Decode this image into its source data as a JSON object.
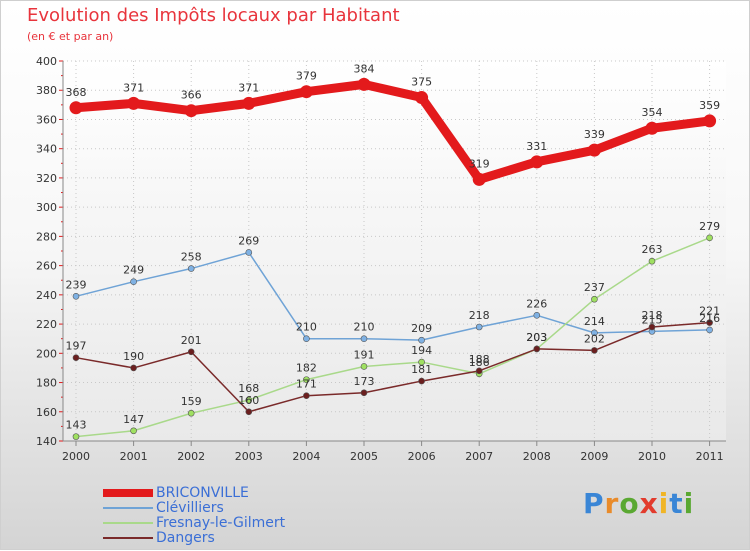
{
  "title": "Evolution des Impôts locaux par Habitant",
  "subtitle": "(en € et par an)",
  "brand": {
    "letters": [
      "P",
      "r",
      "o",
      "x",
      "i",
      "t",
      "i"
    ],
    "colors": [
      "#3a86d6",
      "#e98b2a",
      "#5aa832",
      "#e23b2d",
      "#f0b526",
      "#3a86d6",
      "#5aa832"
    ]
  },
  "chart_data": {
    "type": "line",
    "categories": [
      "2000",
      "2001",
      "2002",
      "2003",
      "2004",
      "2005",
      "2006",
      "2007",
      "2008",
      "2009",
      "2010",
      "2011"
    ],
    "ylim": [
      140,
      400
    ],
    "yticks": [
      140,
      160,
      180,
      200,
      220,
      240,
      260,
      280,
      300,
      320,
      340,
      360,
      380,
      400
    ],
    "grid": true,
    "legend_position": "bottom-left",
    "series": [
      {
        "name": "BRICONVILLE",
        "color": "#e31a1c",
        "marker_fill": "#e31a1c",
        "emphasis": true,
        "values": [
          368,
          371,
          366,
          371,
          379,
          384,
          375,
          319,
          331,
          339,
          354,
          359
        ],
        "labels": [
          "368",
          "371",
          "366",
          "371",
          "379",
          "384",
          "375",
          "319",
          "331",
          "339",
          "354",
          "359"
        ]
      },
      {
        "name": "Clévilliers",
        "color": "#6fa3d6",
        "marker_fill": "#7fb1e3",
        "emphasis": false,
        "values": [
          239,
          249,
          258,
          269,
          210,
          210,
          209,
          218,
          226,
          214,
          215,
          216
        ],
        "labels": [
          "239",
          "249",
          "258",
          "269",
          "210",
          "210",
          "209",
          "218",
          "226",
          "214",
          "215",
          "216"
        ]
      },
      {
        "name": "Fresnay-le-Gilmert",
        "color": "#a9d98a",
        "marker_fill": "#9fe061",
        "emphasis": false,
        "values": [
          143,
          147,
          159,
          168,
          182,
          191,
          194,
          186,
          203,
          237,
          263,
          279
        ],
        "labels": [
          "143",
          "147",
          "159",
          "168",
          "182",
          "191",
          "194",
          "186",
          "203",
          "237",
          "263",
          "279"
        ]
      },
      {
        "name": "Dangers",
        "color": "#7a2a2a",
        "marker_fill": "#6b1f1f",
        "emphasis": false,
        "values": [
          197,
          190,
          201,
          160,
          171,
          173,
          181,
          188,
          203,
          202,
          218,
          221
        ],
        "labels": [
          "197",
          "190",
          "201",
          "160",
          "171",
          "173",
          "181",
          "188",
          "203",
          "202",
          "218",
          "221"
        ]
      }
    ]
  }
}
